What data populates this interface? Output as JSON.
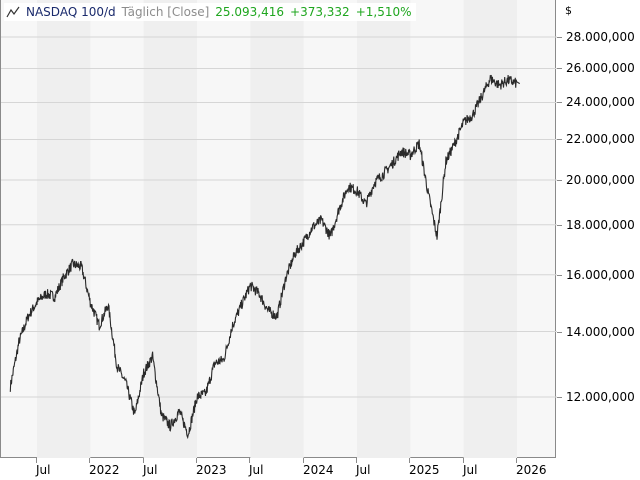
{
  "header": {
    "icon": "line-chart-icon",
    "name": "NASDAQ 100/d",
    "mode": "Täglich [Close]",
    "last": "25.093,416",
    "change": "+373,332",
    "change_pct": "+1,510%",
    "positive_color": "#1fa61f"
  },
  "axis": {
    "currency": "$",
    "y_ticks": [
      "28.000,000",
      "26.000,000",
      "24.000,000",
      "22.000,000",
      "20.000,000",
      "18.000,000",
      "16.000,000",
      "14.000,000",
      "12.000,000"
    ],
    "x_ticks": [
      "Jul",
      "2022",
      "Jul",
      "2023",
      "Jul",
      "2024",
      "Jul",
      "2025",
      "Jul",
      "2026"
    ]
  },
  "chart_data": {
    "type": "line",
    "title": "NASDAQ 100/d Täglich [Close]",
    "xlabel": "",
    "ylabel": "$",
    "yscale": "log",
    "ylim": [
      10600,
      29000
    ],
    "grid": true,
    "legend_position": "top-left",
    "y_ticks": [
      12000,
      14000,
      16000,
      18000,
      20000,
      22000,
      24000,
      26000,
      28000
    ],
    "x_tick_labels": [
      "Jul",
      "2022",
      "Jul",
      "2023",
      "Jul",
      "2024",
      "Jul",
      "2025",
      "Jul",
      "2026"
    ],
    "series": [
      {
        "name": "NASDAQ 100",
        "x": [
          "2021-04",
          "2021-05",
          "2021-06",
          "2021-07",
          "2021-08",
          "2021-09",
          "2021-10",
          "2021-11",
          "2021-12",
          "2022-01",
          "2022-02",
          "2022-03",
          "2022-04",
          "2022-05",
          "2022-06",
          "2022-07",
          "2022-08",
          "2022-09",
          "2022-10",
          "2022-11",
          "2022-12",
          "2023-01",
          "2023-02",
          "2023-03",
          "2023-04",
          "2023-05",
          "2023-06",
          "2023-07",
          "2023-08",
          "2023-09",
          "2023-10",
          "2023-11",
          "2023-12",
          "2024-01",
          "2024-02",
          "2024-03",
          "2024-04",
          "2024-05",
          "2024-06",
          "2024-07",
          "2024-08",
          "2024-09",
          "2024-10",
          "2024-11",
          "2024-12",
          "2025-01",
          "2025-02",
          "2025-03",
          "2025-04",
          "2025-05",
          "2025-06",
          "2025-07",
          "2025-08",
          "2025-09",
          "2025-10",
          "2025-11",
          "2025-12",
          "2026-01"
        ],
        "values": [
          12300,
          13700,
          14500,
          15000,
          15300,
          15200,
          15900,
          16400,
          16300,
          15000,
          14200,
          14900,
          12900,
          12400,
          11500,
          12700,
          13200,
          11500,
          11200,
          11600,
          11000,
          12000,
          12100,
          13000,
          13100,
          14200,
          14900,
          15600,
          15300,
          14700,
          14500,
          15900,
          16800,
          17300,
          17900,
          18200,
          17500,
          18700,
          19700,
          19500,
          18900,
          19900,
          20300,
          20800,
          21400,
          21200,
          21800,
          19400,
          17500,
          20900,
          21800,
          22900,
          23300,
          24300,
          25400,
          25000,
          25300,
          25093
        ]
      }
    ]
  }
}
